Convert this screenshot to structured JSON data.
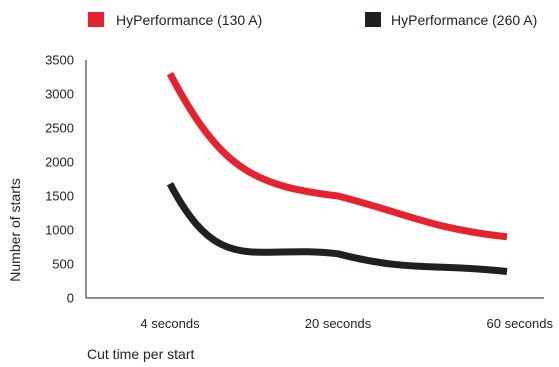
{
  "chart_data": {
    "type": "line",
    "title": "",
    "xlabel": "Cut time per start",
    "ylabel": "Number of starts",
    "categories": [
      "4 seconds",
      "20 seconds",
      "60 seconds"
    ],
    "ylim": [
      0,
      3500
    ],
    "yticks": [
      0,
      500,
      1000,
      1500,
      2000,
      2500,
      3000,
      3500
    ],
    "grid": false,
    "legend_position": "top",
    "series": [
      {
        "name": "HyPerformance (130 A)",
        "color": "#e8212e",
        "x": [
          4,
          20,
          60
        ],
        "values": [
          3300,
          1500,
          900
        ]
      },
      {
        "name": "HyPerformance (260 A)",
        "color": "#231f20",
        "x": [
          4,
          20,
          60
        ],
        "values": [
          1680,
          650,
          390
        ]
      }
    ]
  }
}
